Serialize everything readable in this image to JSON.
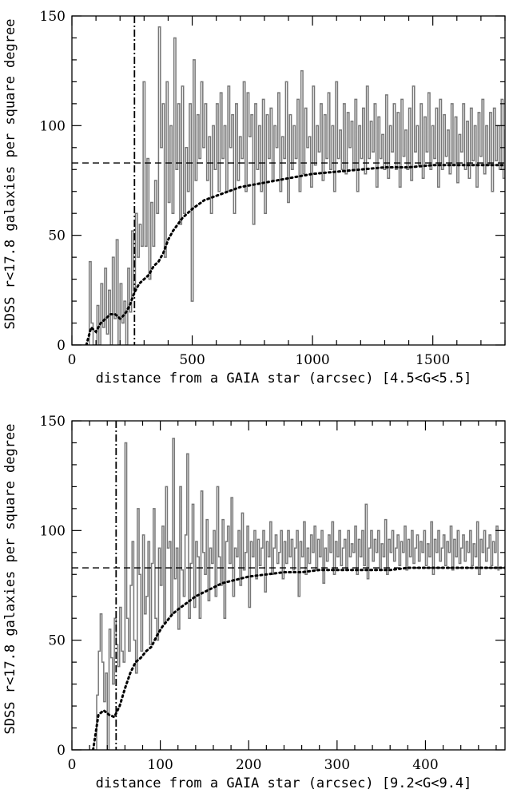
{
  "chart_data": [
    {
      "type": "line",
      "title": "",
      "xlabel": "distance from a GAIA star (arcsec)",
      "xlabel_range": "[4.5<G<5.5]",
      "ylabel": "SDSS r<17.8 galaxies per square degree",
      "xlim": [
        0,
        1800
      ],
      "ylim": [
        0,
        150
      ],
      "xticks": [
        0,
        500,
        1000,
        1500
      ],
      "yticks": [
        0,
        50,
        100,
        150
      ],
      "reference_level": 83,
      "exclusion_radius": 260,
      "series": [
        {
          "style": "histogram",
          "color": "#777777",
          "bin_width": 8,
          "x_start": 0,
          "values": [
            0,
            0,
            0,
            0,
            0,
            0,
            0,
            0,
            0,
            38,
            10,
            0,
            0,
            18,
            0,
            28,
            8,
            35,
            5,
            25,
            0,
            40,
            12,
            48,
            0,
            28,
            10,
            20,
            0,
            35,
            15,
            52,
            25,
            60,
            40,
            55,
            45,
            120,
            45,
            85,
            30,
            65,
            45,
            75,
            60,
            145,
            90,
            110,
            40,
            120,
            65,
            100,
            60,
            140,
            80,
            110,
            55,
            118,
            60,
            90,
            70,
            110,
            20,
            130,
            75,
            105,
            85,
            120,
            90,
            110,
            75,
            95,
            60,
            100,
            80,
            110,
            70,
            115,
            85,
            100,
            70,
            118,
            90,
            105,
            60,
            110,
            75,
            95,
            85,
            120,
            70,
            115,
            95,
            105,
            55,
            110,
            80,
            100,
            70,
            112,
            60,
            105,
            85,
            108,
            75,
            100,
            90,
            115,
            70,
            95,
            85,
            120,
            65,
            105,
            80,
            100,
            85,
            112,
            70,
            125,
            78,
            108,
            90,
            95,
            72,
            118,
            82,
            100,
            88,
            110,
            75,
            105,
            85,
            115,
            80,
            100,
            70,
            120,
            85,
            98,
            80,
            110,
            78,
            106,
            90,
            102,
            80,
            112,
            70,
            100,
            85,
            108,
            78,
            118,
            85,
            102,
            88,
            110,
            72,
            104,
            85,
            96,
            80,
            114,
            76,
            100,
            88,
            110,
            80,
            106,
            72,
            112,
            86,
            98,
            80,
            108,
            75,
            118,
            88,
            100,
            82,
            110,
            76,
            104,
            88,
            115,
            80,
            100,
            85,
            108,
            72,
            112,
            80,
            105,
            86,
            98,
            78,
            110,
            82,
            104,
            74,
            96,
            88,
            110,
            80,
            102,
            76,
            108,
            84,
            100,
            72,
            106,
            86,
            112,
            78,
            100,
            82,
            106,
            70,
            108,
            84,
            100,
            80,
            112,
            76,
            98,
            86,
            104,
            80,
            110,
            74,
            100,
            84,
            96,
            78,
            106,
            82,
            100,
            72
          ]
        },
        {
          "style": "dotted",
          "color": "#000000",
          "x": [
            60,
            80,
            100,
            120,
            140,
            160,
            180,
            200,
            220,
            240,
            260,
            280,
            300,
            320,
            340,
            360,
            380,
            400,
            420,
            440,
            460,
            480,
            500,
            550,
            600,
            650,
            700,
            750,
            800,
            850,
            900,
            950,
            1000,
            1100,
            1200,
            1300,
            1400,
            1500,
            1600,
            1700,
            1800
          ],
          "y": [
            0,
            8,
            6,
            10,
            12,
            14,
            14,
            12,
            14,
            18,
            24,
            28,
            30,
            32,
            36,
            38,
            42,
            48,
            52,
            55,
            58,
            60,
            62,
            66,
            68,
            70,
            72,
            73,
            74,
            75,
            76,
            77,
            78,
            79,
            80,
            81,
            81,
            82,
            82,
            82,
            82
          ]
        }
      ]
    },
    {
      "type": "line",
      "title": "",
      "xlabel": "distance from a GAIA star (arcsec)",
      "xlabel_range": "[9.2<G<9.4]",
      "ylabel": "SDSS r<17.8 galaxies per square degree",
      "xlim": [
        0,
        490
      ],
      "ylim": [
        0,
        150
      ],
      "xticks": [
        0,
        100,
        200,
        300,
        400
      ],
      "yticks": [
        0,
        50,
        100,
        150
      ],
      "reference_level": 83,
      "exclusion_radius": 50,
      "series": [
        {
          "style": "histogram",
          "color": "#777777",
          "bin_width": 2,
          "x_start": 0,
          "values": [
            0,
            0,
            0,
            0,
            0,
            0,
            0,
            0,
            0,
            0,
            0,
            0,
            0,
            0,
            25,
            45,
            62,
            40,
            22,
            35,
            0,
            55,
            42,
            30,
            60,
            48,
            38,
            65,
            45,
            40,
            140,
            60,
            45,
            75,
            95,
            50,
            35,
            110,
            80,
            45,
            98,
            62,
            70,
            95,
            48,
            85,
            110,
            60,
            50,
            92,
            75,
            102,
            58,
            120,
            92,
            95,
            62,
            142,
            78,
            92,
            55,
            120,
            82,
            70,
            98,
            135,
            60,
            85,
            112,
            65,
            95,
            88,
            60,
            118,
            90,
            80,
            105,
            68,
            92,
            85,
            100,
            70,
            120,
            88,
            75,
            105,
            60,
            95,
            102,
            85,
            115,
            70,
            92,
            88,
            100,
            75,
            108,
            82,
            90,
            102,
            65,
            95,
            88,
            100,
            78,
            96,
            84,
            92,
            100,
            72,
            95,
            88,
            104,
            80,
            92,
            98,
            85,
            90,
            100,
            78,
            95,
            85,
            100,
            88,
            96,
            82,
            92,
            100,
            70,
            95,
            88,
            104,
            80,
            92,
            85,
            98,
            90,
            102,
            82,
            96,
            88,
            100,
            76,
            92,
            86,
            98,
            90,
            104,
            80,
            95,
            88,
            100,
            84,
            92,
            96,
            82,
            100,
            88,
            94,
            90,
            102,
            80,
            96,
            88,
            100,
            84,
            112,
            78,
            92,
            100,
            86,
            96,
            90,
            100,
            82,
            94,
            88,
            105,
            80,
            96,
            90,
            100,
            86,
            92,
            98,
            84,
            95,
            90,
            102,
            82,
            96,
            88,
            100,
            85,
            92,
            98,
            86,
            95,
            90,
            100,
            84,
            94,
            88,
            104,
            80,
            96,
            90,
            100,
            86,
            92,
            98,
            84,
            95,
            90,
            102,
            82,
            96,
            88,
            100,
            85,
            92,
            98,
            86,
            95,
            90,
            100,
            84,
            94,
            88,
            104,
            80,
            96,
            90,
            100,
            86,
            92,
            98,
            84,
            95,
            90,
            102,
            82
          ]
        },
        {
          "style": "dotted",
          "color": "#000000",
          "x": [
            24,
            30,
            36,
            42,
            48,
            54,
            60,
            66,
            72,
            78,
            84,
            90,
            96,
            102,
            108,
            114,
            120,
            130,
            140,
            150,
            160,
            170,
            180,
            190,
            200,
            220,
            240,
            260,
            280,
            300,
            320,
            340,
            360,
            380,
            400,
            420,
            440,
            460,
            480,
            490
          ],
          "y": [
            0,
            16,
            18,
            16,
            15,
            20,
            28,
            35,
            40,
            42,
            45,
            47,
            52,
            56,
            59,
            62,
            64,
            67,
            70,
            72,
            74,
            76,
            77,
            78,
            79,
            80,
            81,
            81,
            82,
            82,
            82,
            82,
            82,
            83,
            83,
            83,
            83,
            83,
            83,
            83
          ]
        }
      ]
    }
  ]
}
